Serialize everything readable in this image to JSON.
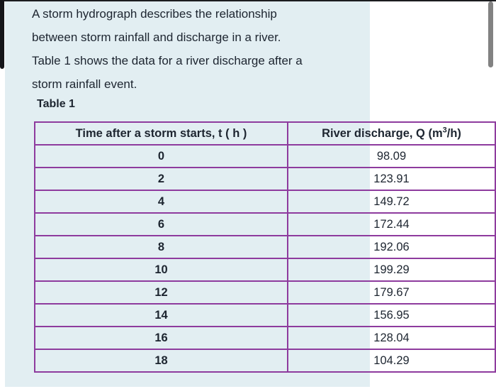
{
  "colors": {
    "panel_bg": "#e2eef2",
    "table_border": "#8e3b9e",
    "text": "#1d2530",
    "scrollbar": "#828282"
  },
  "paragraph": {
    "lines": [
      "A storm hydrograph describes the relationship",
      "between storm rainfall and discharge in a river.",
      "Table 1 shows the data for a river discharge after a",
      "storm rainfall event."
    ]
  },
  "table_label": "Table 1",
  "table": {
    "headers": {
      "col1": "Time after a storm starts, t ( h )",
      "col2_prefix": "River discharge, Q (m",
      "col2_sup": "3",
      "col2_suffix": "/h)"
    },
    "rows": [
      {
        "t": "0",
        "q": "98.09"
      },
      {
        "t": "2",
        "q": "123.91"
      },
      {
        "t": "4",
        "q": "149.72"
      },
      {
        "t": "6",
        "q": "172.44"
      },
      {
        "t": "8",
        "q": "192.06"
      },
      {
        "t": "10",
        "q": "199.29"
      },
      {
        "t": "12",
        "q": "179.67"
      },
      {
        "t": "14",
        "q": "156.95"
      },
      {
        "t": "16",
        "q": "128.04"
      },
      {
        "t": "18",
        "q": "104.29"
      }
    ]
  },
  "chart_data": {
    "type": "table",
    "title": "Table 1",
    "xlabel": "Time after a storm starts, t ( h )",
    "ylabel": "River discharge, Q (m3/h)",
    "x": [
      0,
      2,
      4,
      6,
      8,
      10,
      12,
      14,
      16,
      18
    ],
    "values": [
      98.09,
      123.91,
      149.72,
      172.44,
      192.06,
      199.29,
      179.67,
      156.95,
      128.04,
      104.29
    ]
  }
}
